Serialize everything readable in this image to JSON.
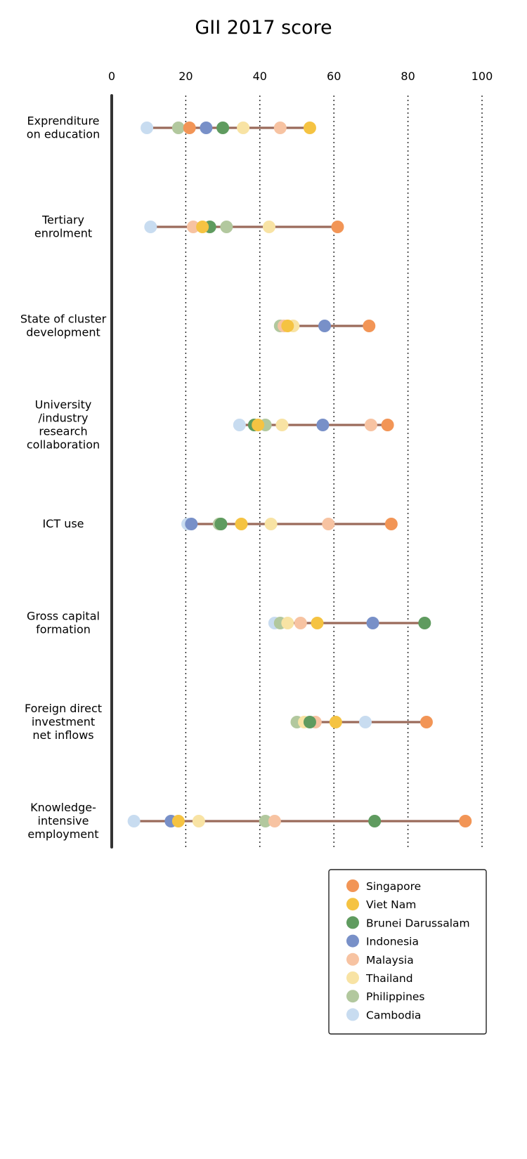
{
  "chart_data": {
    "type": "dot-plot",
    "title": "GII 2017 score",
    "x_ticks": [
      0,
      20,
      40,
      60,
      80,
      100
    ],
    "xlim": [
      0,
      100
    ],
    "grid": "dotted vertical lines at 20, 40, 60, 80, 100",
    "legend_position": "bottom-right",
    "colors": {
      "range_line": "#9a6a5a",
      "axis": "#333333"
    },
    "series": [
      {
        "name": "Singapore",
        "color": "#f29556"
      },
      {
        "name": "Viet Nam",
        "color": "#f5c342"
      },
      {
        "name": "Brunei Darussalam",
        "color": "#5f9b5f"
      },
      {
        "name": "Indonesia",
        "color": "#7890c8"
      },
      {
        "name": "Malaysia",
        "color": "#f7c3a2"
      },
      {
        "name": "Thailand",
        "color": "#f8e3a4"
      },
      {
        "name": "Philippines",
        "color": "#b2c89e"
      },
      {
        "name": "Cambodia",
        "color": "#c8dcf0"
      }
    ],
    "categories": [
      {
        "lines": [
          "Exprenditure",
          "on education"
        ],
        "values": {
          "Cambodia": 9.5,
          "Philippines": 18.0,
          "Singapore": 21.0,
          "Indonesia": 25.5,
          "Brunei Darussalam": 30.0,
          "Thailand": 35.5,
          "Malaysia": 45.5,
          "Viet Nam": 53.5
        }
      },
      {
        "lines": [
          "Tertiary",
          "enrolment"
        ],
        "values": {
          "Cambodia": 10.5,
          "Malaysia": 22.0,
          "Viet Nam": 24.5,
          "Brunei Darussalam": 26.5,
          "Philippines": 31.0,
          "Thailand": 42.5,
          "Singapore": 61.0
        }
      },
      {
        "lines": [
          "State of cluster",
          "development"
        ],
        "values": {
          "Philippines": 45.5,
          "Malaysia": 46.5,
          "Viet Nam": 47.5,
          "Thailand": 49.0,
          "Indonesia": 57.5,
          "Singapore": 69.5
        }
      },
      {
        "lines": [
          "University",
          "/industry",
          "research",
          "collaboration"
        ],
        "values": {
          "Cambodia": 34.5,
          "Brunei Darussalam": 38.5,
          "Viet Nam": 39.5,
          "Philippines": 41.5,
          "Thailand": 46.0,
          "Indonesia": 57.0,
          "Malaysia": 70.0,
          "Singapore": 74.5
        }
      },
      {
        "lines": [
          "ICT use"
        ],
        "values": {
          "Cambodia": 20.5,
          "Indonesia": 21.5,
          "Philippines": 29.0,
          "Brunei Darussalam": 29.5,
          "Viet Nam": 35.0,
          "Thailand": 43.0,
          "Malaysia": 58.5,
          "Singapore": 75.5
        }
      },
      {
        "lines": [
          "Gross capital",
          "formation"
        ],
        "values": {
          "Cambodia": 44.0,
          "Philippines": 45.5,
          "Thailand": 47.5,
          "Malaysia": 51.0,
          "Viet Nam": 55.5,
          "Indonesia": 70.5,
          "Brunei Darussalam": 84.5
        }
      },
      {
        "lines": [
          "Foreign direct",
          "investment",
          "net inflows"
        ],
        "values": {
          "Philippines": 50.0,
          "Brunei Darussalam": 53.5,
          "Thailand": 52.0,
          "Malaysia": 55.0,
          "Viet Nam": 60.5,
          "Cambodia": 68.5,
          "Singapore": 85.0
        }
      },
      {
        "lines": [
          "Knowledge-",
          "intensive",
          "employment"
        ],
        "values": {
          "Cambodia": 6.0,
          "Indonesia": 16.0,
          "Viet Nam": 18.0,
          "Thailand": 23.5,
          "Philippines": 41.5,
          "Malaysia": 44.0,
          "Brunei Darussalam": 71.0,
          "Singapore": 95.5
        }
      }
    ]
  }
}
